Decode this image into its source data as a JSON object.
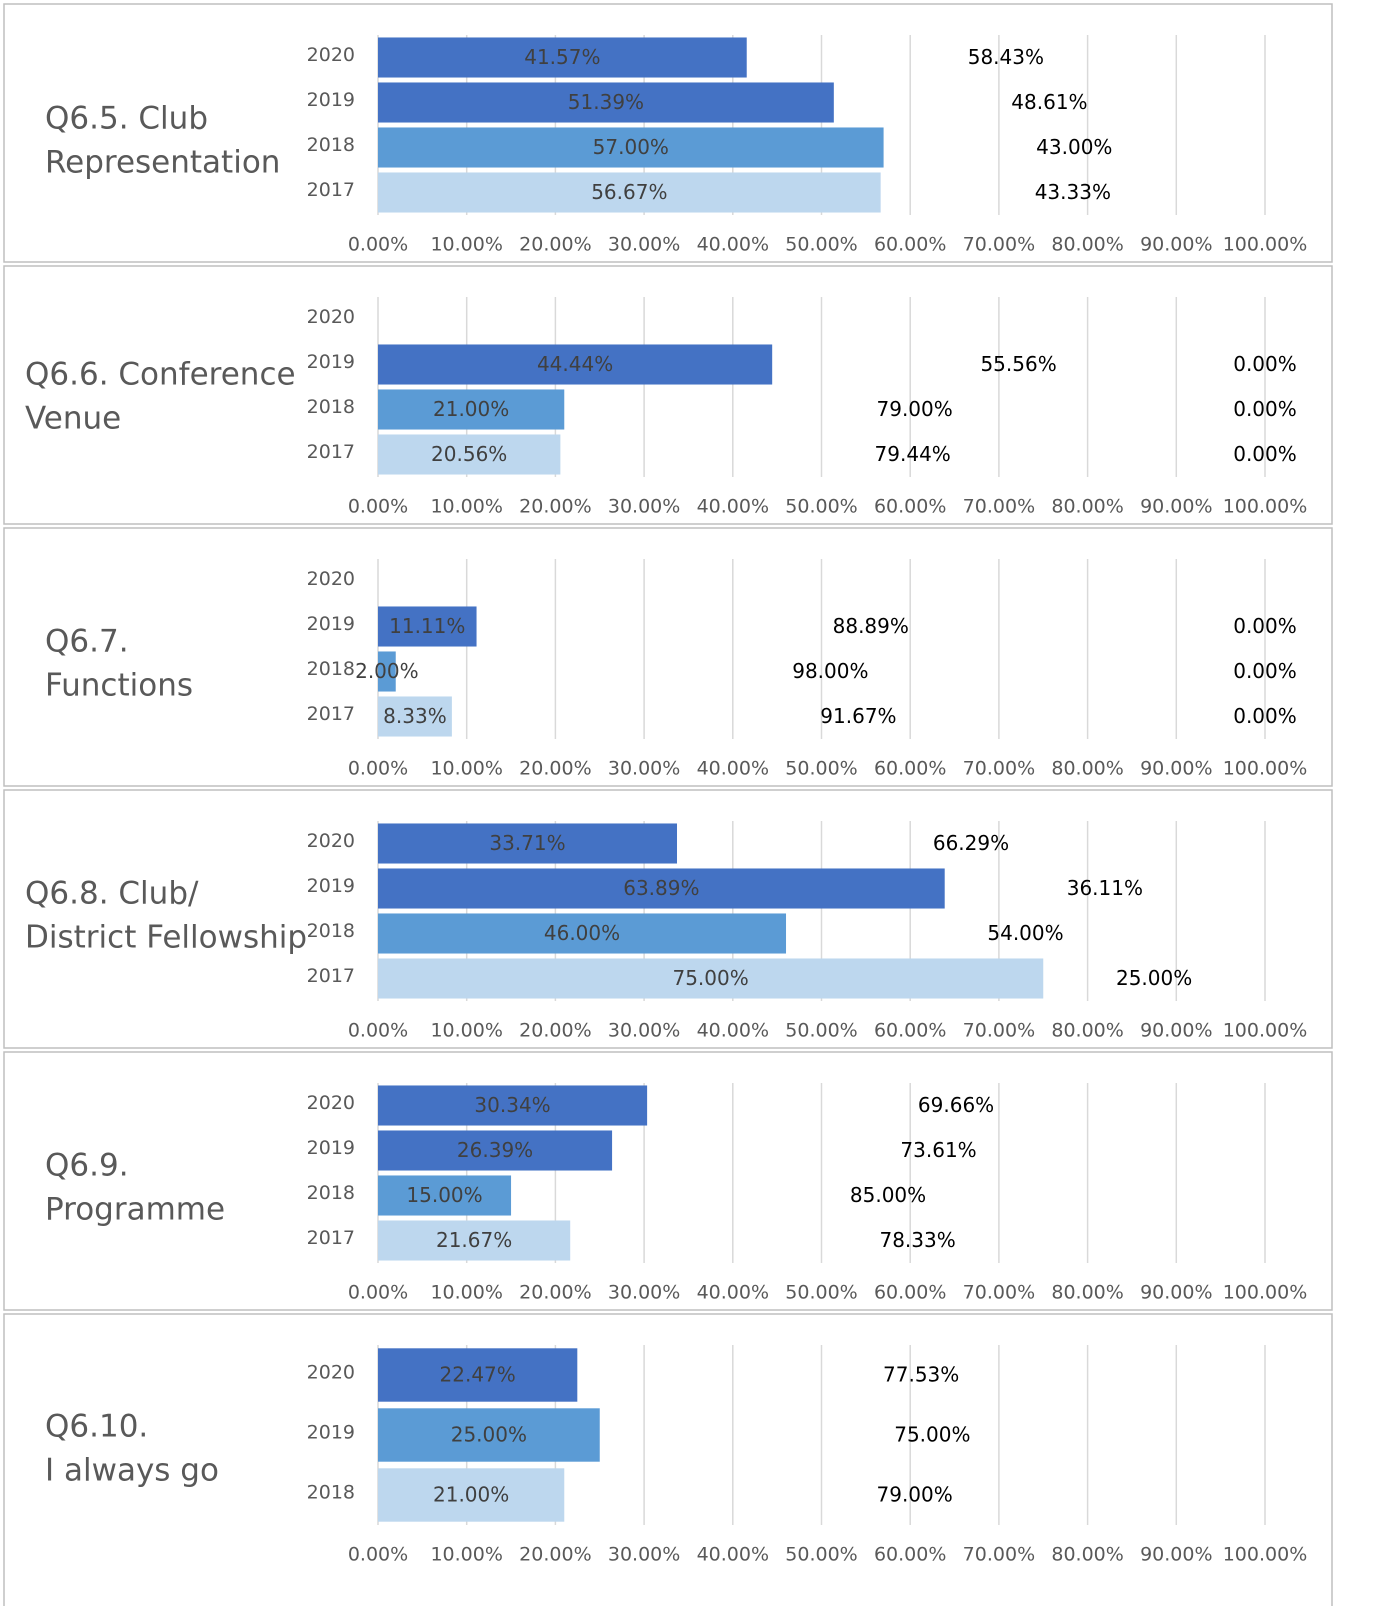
{
  "chart_data": [
    {
      "type": "bar",
      "orientation": "horizontal",
      "stacked": true,
      "grid": true,
      "title": [
        "Q6.5. Club",
        "Representation"
      ],
      "categories": [
        "2020",
        "2019",
        "2018",
        "2017"
      ],
      "xlim": [
        0,
        100
      ],
      "xticks": [
        {
          "value": 0,
          "label": "0.00%"
        },
        {
          "value": 10,
          "label": "10.00%"
        },
        {
          "value": 20,
          "label": "20.00%"
        },
        {
          "value": 30,
          "label": "30.00%"
        },
        {
          "value": 40,
          "label": "40.00%"
        },
        {
          "value": 50,
          "label": "50.00%"
        },
        {
          "value": 60,
          "label": "60.00%"
        },
        {
          "value": 70,
          "label": "70.00%"
        },
        {
          "value": 80,
          "label": "80.00%"
        },
        {
          "value": 90,
          "label": "90.00%"
        },
        {
          "value": 100,
          "label": "100.00%"
        }
      ],
      "series": [
        {
          "colors": [
            "#4472c4",
            "#4472c4",
            "#5b9bd5",
            "#bdd7ee"
          ],
          "values": [
            41.57,
            51.39,
            57,
            56.67
          ],
          "value_labels": [
            "41.57%",
            "51.39%",
            "57.00%",
            "56.67%"
          ]
        },
        {
          "values": [
            58.43,
            48.61,
            43,
            43.33
          ],
          "value_labels": [
            "58.43%",
            "48.61%",
            "43.00%",
            "43.33%"
          ]
        }
      ]
    },
    {
      "type": "bar",
      "orientation": "horizontal",
      "stacked": true,
      "grid": true,
      "title": [
        "Q6.6. Conference",
        "Venue"
      ],
      "categories": [
        "2020",
        "2019",
        "2018",
        "2017"
      ],
      "xlim": [
        0,
        100
      ],
      "xticks": [
        {
          "value": 0,
          "label": "0.00%"
        },
        {
          "value": 10,
          "label": "10.00%"
        },
        {
          "value": 20,
          "label": "20.00%"
        },
        {
          "value": 30,
          "label": "30.00%"
        },
        {
          "value": 40,
          "label": "40.00%"
        },
        {
          "value": 50,
          "label": "50.00%"
        },
        {
          "value": 60,
          "label": "60.00%"
        },
        {
          "value": 70,
          "label": "70.00%"
        },
        {
          "value": 80,
          "label": "80.00%"
        },
        {
          "value": 90,
          "label": "90.00%"
        },
        {
          "value": 100,
          "label": "100.00%"
        }
      ],
      "series": [
        {
          "colors": [
            "#4472c4",
            "#4472c4",
            "#5b9bd5",
            "#bdd7ee"
          ],
          "values": [
            null,
            44.44,
            21,
            20.56
          ],
          "value_labels": [
            null,
            "44.44%",
            "21.00%",
            "20.56%"
          ]
        },
        {
          "values": [
            null,
            55.56,
            79,
            79.44
          ],
          "value_labels": [
            null,
            "55.56%",
            "79.00%",
            "79.44%"
          ]
        },
        {
          "values": [
            null,
            0,
            0,
            0
          ],
          "value_labels": [
            null,
            "0.00%",
            "0.00%",
            "0.00%"
          ]
        }
      ]
    },
    {
      "type": "bar",
      "orientation": "horizontal",
      "stacked": true,
      "grid": true,
      "title": [
        "Q6.7.",
        "Functions"
      ],
      "categories": [
        "2020",
        "2019",
        "2018",
        "2017"
      ],
      "xlim": [
        0,
        100
      ],
      "xticks": [
        {
          "value": 0,
          "label": "0.00%"
        },
        {
          "value": 10,
          "label": "10.00%"
        },
        {
          "value": 20,
          "label": "20.00%"
        },
        {
          "value": 30,
          "label": "30.00%"
        },
        {
          "value": 40,
          "label": "40.00%"
        },
        {
          "value": 50,
          "label": "50.00%"
        },
        {
          "value": 60,
          "label": "60.00%"
        },
        {
          "value": 70,
          "label": "70.00%"
        },
        {
          "value": 80,
          "label": "80.00%"
        },
        {
          "value": 90,
          "label": "90.00%"
        },
        {
          "value": 100,
          "label": "100.00%"
        }
      ],
      "series": [
        {
          "colors": [
            "#4472c4",
            "#4472c4",
            "#5b9bd5",
            "#bdd7ee"
          ],
          "values": [
            null,
            11.11,
            2,
            8.33
          ],
          "value_labels": [
            null,
            "11.11%",
            "2.00%",
            "8.33%"
          ]
        },
        {
          "values": [
            null,
            88.89,
            98,
            91.67
          ],
          "value_labels": [
            null,
            "88.89%",
            "98.00%",
            "91.67%"
          ]
        },
        {
          "values": [
            null,
            0,
            0,
            0
          ],
          "value_labels": [
            null,
            "0.00%",
            "0.00%",
            "0.00%"
          ]
        }
      ]
    },
    {
      "type": "bar",
      "orientation": "horizontal",
      "stacked": true,
      "grid": true,
      "title": [
        "Q6.8. Club/",
        "District Fellowship"
      ],
      "categories": [
        "2020",
        "2019",
        "2018",
        "2017"
      ],
      "xlim": [
        0,
        100
      ],
      "xticks": [
        {
          "value": 0,
          "label": "0.00%"
        },
        {
          "value": 10,
          "label": "10.00%"
        },
        {
          "value": 20,
          "label": "20.00%"
        },
        {
          "value": 30,
          "label": "30.00%"
        },
        {
          "value": 40,
          "label": "40.00%"
        },
        {
          "value": 50,
          "label": "50.00%"
        },
        {
          "value": 60,
          "label": "60.00%"
        },
        {
          "value": 70,
          "label": "70.00%"
        },
        {
          "value": 80,
          "label": "80.00%"
        },
        {
          "value": 90,
          "label": "90.00%"
        },
        {
          "value": 100,
          "label": "100.00%"
        }
      ],
      "series": [
        {
          "colors": [
            "#4472c4",
            "#4472c4",
            "#5b9bd5",
            "#bdd7ee"
          ],
          "values": [
            33.71,
            63.89,
            46,
            75
          ],
          "value_labels": [
            "33.71%",
            "63.89%",
            "46.00%",
            "75.00%"
          ]
        },
        {
          "values": [
            66.29,
            36.11,
            54,
            25
          ],
          "value_labels": [
            "66.29%",
            "36.11%",
            "54.00%",
            "25.00%"
          ]
        }
      ]
    },
    {
      "type": "bar",
      "orientation": "horizontal",
      "stacked": true,
      "grid": true,
      "title": [
        "Q6.9.",
        "Programme"
      ],
      "categories": [
        "2020",
        "2019",
        "2018",
        "2017"
      ],
      "xlim": [
        0,
        100
      ],
      "xticks": [
        {
          "value": 0,
          "label": "0.00%"
        },
        {
          "value": 10,
          "label": "10.00%"
        },
        {
          "value": 20,
          "label": "20.00%"
        },
        {
          "value": 30,
          "label": "30.00%"
        },
        {
          "value": 40,
          "label": "40.00%"
        },
        {
          "value": 50,
          "label": "50.00%"
        },
        {
          "value": 60,
          "label": "60.00%"
        },
        {
          "value": 70,
          "label": "70.00%"
        },
        {
          "value": 80,
          "label": "80.00%"
        },
        {
          "value": 90,
          "label": "90.00%"
        },
        {
          "value": 100,
          "label": "100.00%"
        }
      ],
      "series": [
        {
          "colors": [
            "#4472c4",
            "#4472c4",
            "#5b9bd5",
            "#bdd7ee"
          ],
          "values": [
            30.34,
            26.39,
            15,
            21.67
          ],
          "value_labels": [
            "30.34%",
            "26.39%",
            "15.00%",
            "21.67%"
          ]
        },
        {
          "values": [
            69.66,
            73.61,
            85,
            78.33
          ],
          "value_labels": [
            "69.66%",
            "73.61%",
            "85.00%",
            "78.33%"
          ]
        }
      ]
    },
    {
      "type": "bar",
      "orientation": "horizontal",
      "stacked": true,
      "grid": true,
      "title": [
        "Q6.10.",
        "I always go"
      ],
      "categories": [
        "2020",
        "2019",
        "2018"
      ],
      "xlim": [
        0,
        100
      ],
      "xticks": [
        {
          "value": 0,
          "label": "0.00%"
        },
        {
          "value": 10,
          "label": "10.00%"
        },
        {
          "value": 20,
          "label": "20.00%"
        },
        {
          "value": 30,
          "label": "30.00%"
        },
        {
          "value": 40,
          "label": "40.00%"
        },
        {
          "value": 50,
          "label": "50.00%"
        },
        {
          "value": 60,
          "label": "60.00%"
        },
        {
          "value": 70,
          "label": "70.00%"
        },
        {
          "value": 80,
          "label": "80.00%"
        },
        {
          "value": 90,
          "label": "90.00%"
        },
        {
          "value": 100,
          "label": "100.00%"
        }
      ],
      "series": [
        {
          "colors": [
            "#4472c4",
            "#5b9bd5",
            "#bdd7ee"
          ],
          "values": [
            22.47,
            25,
            21
          ],
          "value_labels": [
            "22.47%",
            "25.00%",
            "21.00%"
          ]
        },
        {
          "values": [
            77.53,
            75,
            79
          ],
          "value_labels": [
            "77.53%",
            "75.00%",
            "79.00%"
          ]
        }
      ]
    }
  ]
}
